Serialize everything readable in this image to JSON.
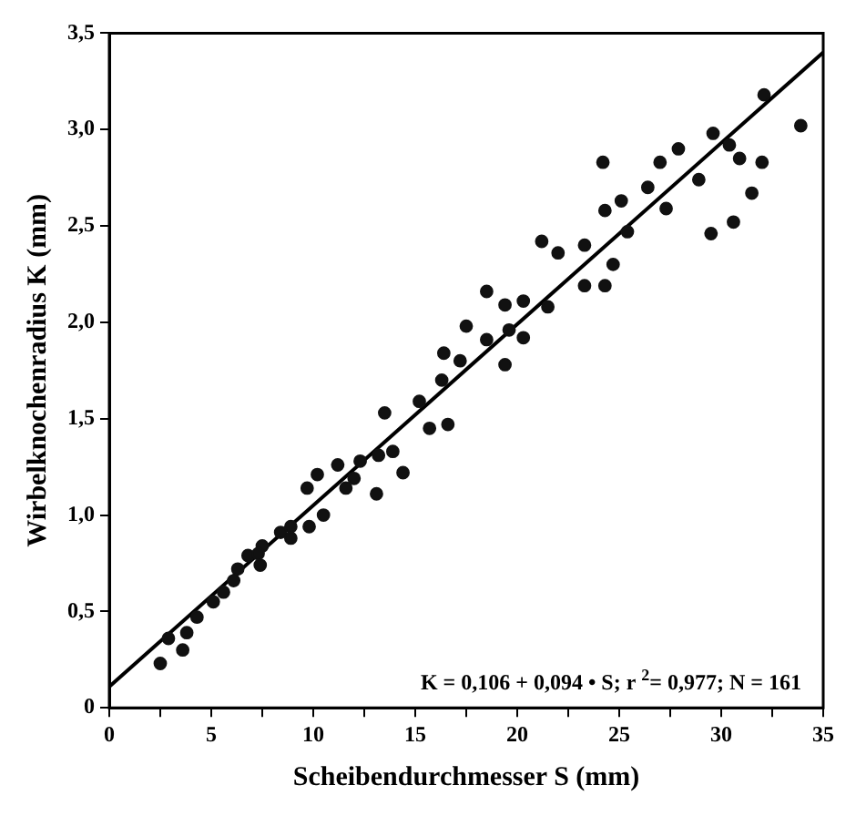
{
  "chart_data": {
    "type": "scatter",
    "xlabel": "Scheibendurchmesser S (mm)",
    "ylabel": "Wirbelknochenradius K (mm)",
    "annotations": [
      "K = 0,106 + 0,094 • S; r $^{2}$= 0,977; N = 161"
    ],
    "xlim": [
      0,
      35
    ],
    "ylim": [
      0,
      3.5
    ],
    "xticks": [
      0,
      {
        "value": 2.5,
        "label": null
      },
      5,
      {
        "value": 7.5,
        "label": null
      },
      10,
      {
        "value": 12.5,
        "label": null
      },
      15,
      {
        "value": 17.5,
        "label": null
      },
      20,
      {
        "value": 22.5,
        "label": null
      },
      25,
      {
        "value": 27.5,
        "label": null
      },
      30,
      {
        "value": 32.5,
        "label": null
      },
      35
    ],
    "yticks": [
      0,
      {
        "value": 0.5,
        "label": "0,5"
      },
      {
        "value": 1,
        "label": "1,0"
      },
      {
        "value": 1.5,
        "label": "1,5"
      },
      {
        "value": 2,
        "label": "2,0"
      },
      {
        "value": 2.5,
        "label": "2,5"
      },
      {
        "value": 3,
        "label": "3,0"
      },
      {
        "value": 3.5,
        "label": "3,5"
      }
    ],
    "grid": false,
    "legend": false,
    "marker": "circle",
    "series": [
      {
        "type": "scatter",
        "color": "#111111",
        "x": [
          33.9,
          32.1,
          30.6,
          29.5,
          31.5,
          28.9,
          24.2,
          32.0,
          29.6,
          27.0,
          27.9,
          26.4,
          25.1,
          24.3,
          21.2,
          22.0,
          23.3,
          24.7,
          24.3,
          23.3,
          18.5,
          21.5,
          20.3,
          19.4,
          17.5,
          19.6,
          16.4,
          19.4,
          18.5,
          20.3,
          25.4,
          27.3,
          30.4,
          30.9,
          16.6,
          15.7,
          15.2,
          13.5,
          16.3,
          17.2,
          14.4,
          13.1,
          13.2,
          12.3,
          11.2,
          10.2,
          9.7,
          11.6,
          9.8,
          8.9,
          8.4,
          7.5,
          6.8,
          7.4,
          6.1,
          5.6,
          5.1,
          4.3,
          3.8,
          2.9,
          3.6,
          2.5,
          10.5,
          8.9,
          12.0,
          13.9,
          6.3,
          7.3
        ],
        "values": [
          3.02,
          3.18,
          2.52,
          2.46,
          2.67,
          2.74,
          2.83,
          2.83,
          2.98,
          2.83,
          2.9,
          2.7,
          2.63,
          2.58,
          2.42,
          2.36,
          2.4,
          2.3,
          2.19,
          2.19,
          2.16,
          2.08,
          2.11,
          2.09,
          1.98,
          1.96,
          1.84,
          1.78,
          1.91,
          1.92,
          2.47,
          2.59,
          2.92,
          2.85,
          1.47,
          1.45,
          1.59,
          1.53,
          1.7,
          1.8,
          1.22,
          1.11,
          1.31,
          1.28,
          1.26,
          1.21,
          1.14,
          1.14,
          0.94,
          0.94,
          0.91,
          0.84,
          0.79,
          0.74,
          0.66,
          0.6,
          0.55,
          0.47,
          0.39,
          0.36,
          0.3,
          0.23,
          1.0,
          0.88,
          1.19,
          1.33,
          0.72,
          0.8
        ]
      },
      {
        "type": "line",
        "color": "#000000",
        "marker": "none",
        "line_style": "solid",
        "x": [
          0,
          35
        ],
        "values": [
          0.11,
          3.4
        ]
      }
    ]
  }
}
